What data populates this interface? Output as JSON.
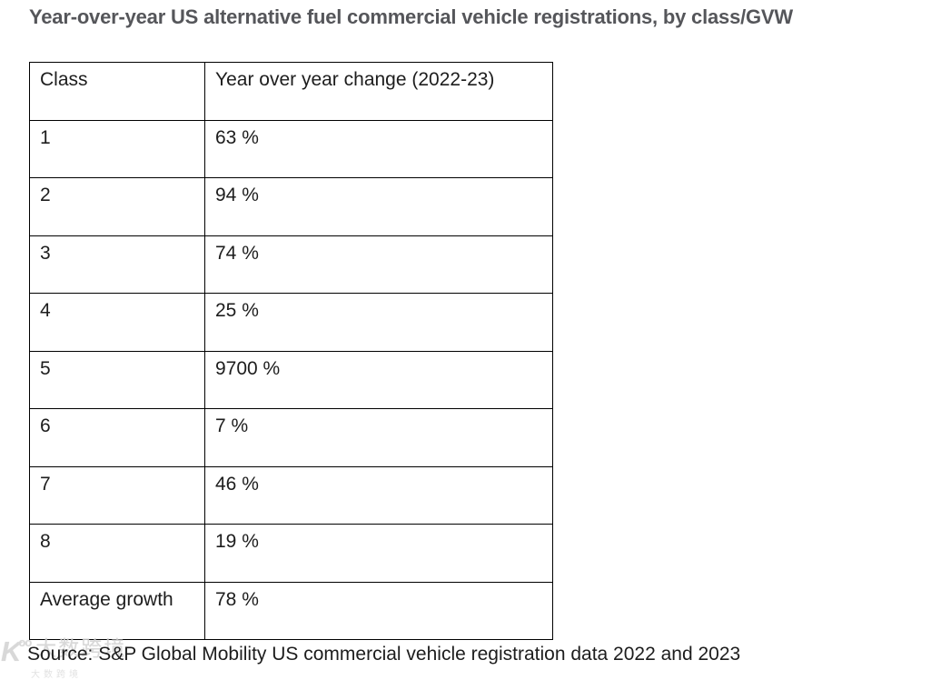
{
  "title": "Year-over-year US alternative fuel commercial vehicle registrations, by class/GVW",
  "source": "Source: S&P Global Mobility US commercial vehicle registration data 2022 and 2023",
  "watermark": {
    "logo": "K",
    "logo_sup": "oo",
    "text": "大数跨境"
  },
  "colors": {
    "title": "#55565a",
    "table_text": "#1d1d1d",
    "table_border": "#000000",
    "background": "#ffffff",
    "watermark": "#d2d2d2"
  },
  "chart_data": {
    "type": "table",
    "title": "Year-over-year US alternative fuel commercial vehicle registrations, by class/GVW",
    "columns": [
      "Class",
      "Year over year change (2022-23)"
    ],
    "categories": [
      "1",
      "2",
      "3",
      "4",
      "5",
      "6",
      "7",
      "8",
      "Average growth"
    ],
    "values_pct": [
      63,
      94,
      74,
      25,
      9700,
      7,
      46,
      19,
      78
    ],
    "rows": [
      {
        "class": "1",
        "change": "63 %"
      },
      {
        "class": "2",
        "change": "94 %"
      },
      {
        "class": "3",
        "change": "74 %"
      },
      {
        "class": "4",
        "change": "25 %"
      },
      {
        "class": "5",
        "change": "9700 %"
      },
      {
        "class": "6",
        "change": "7 %"
      },
      {
        "class": "7",
        "change": "46 %"
      },
      {
        "class": "8",
        "change": "19 %"
      },
      {
        "class": "Average growth",
        "change": "78 %"
      }
    ],
    "source": "Source: S&P Global Mobility US commercial vehicle registration data 2022 and 2023",
    "legend_position": "none",
    "grid": "full-borders"
  }
}
